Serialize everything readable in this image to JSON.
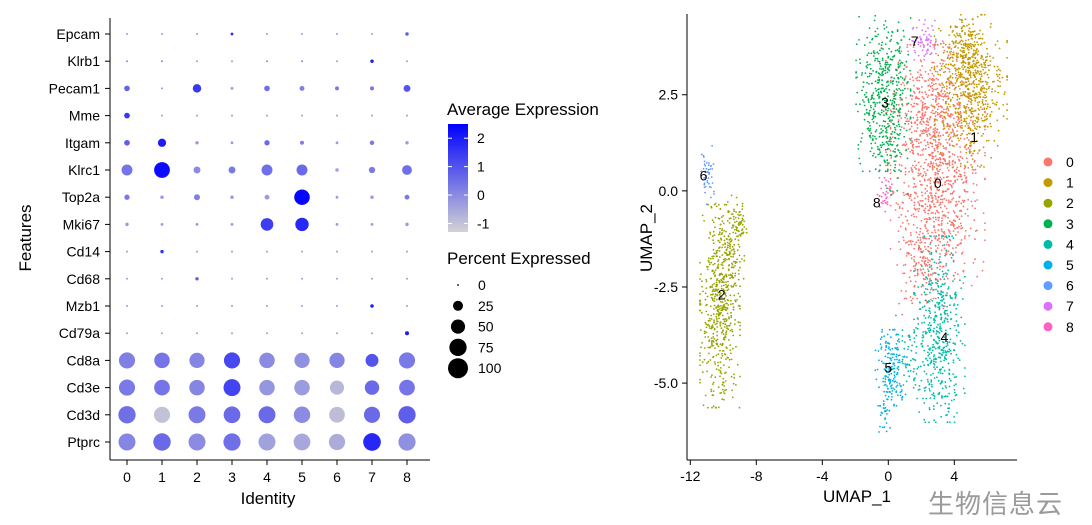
{
  "watermark": "生物信息云",
  "chart_data": [
    {
      "type": "dotplot",
      "xlabel": "Identity",
      "ylabel": "Features",
      "identities": [
        "0",
        "1",
        "2",
        "3",
        "4",
        "5",
        "6",
        "7",
        "8"
      ],
      "features": [
        "Epcam",
        "Klrb1",
        "Pecam1",
        "Mme",
        "Itgam",
        "Klrc1",
        "Top2a",
        "Mki67",
        "Cd14",
        "Cd68",
        "Mzb1",
        "Cd79a",
        "Cd8a",
        "Cd3e",
        "Cd3d",
        "Ptprc"
      ],
      "avg_expression": [
        [
          -0.3,
          -0.3,
          -0.3,
          1.8,
          -0.3,
          -0.3,
          -0.3,
          -0.3,
          0.8
        ],
        [
          0,
          0,
          -0.3,
          -0.3,
          0,
          0,
          -0.3,
          2.0,
          -0.3
        ],
        [
          0.7,
          -0.3,
          1.5,
          -0.3,
          0.5,
          0.2,
          0.3,
          0.4,
          1.0
        ],
        [
          1.5,
          -0.3,
          -0.3,
          -0.3,
          -0.3,
          -0.3,
          -0.3,
          -0.3,
          -0.3
        ],
        [
          0.8,
          2.0,
          -0.3,
          -0.3,
          0.6,
          0.2,
          -0.3,
          0.3,
          -0.3
        ],
        [
          0.4,
          2.3,
          0.0,
          0.3,
          0.5,
          0.6,
          -0.4,
          0.3,
          0.5
        ],
        [
          0.3,
          -0.3,
          0.2,
          -0.3,
          -0.3,
          2.4,
          -0.3,
          -0.3,
          0.3
        ],
        [
          -0.3,
          -0.3,
          -0.3,
          -0.3,
          1.4,
          1.8,
          -0.3,
          -0.3,
          -0.3
        ],
        [
          -0.3,
          1.5,
          -0.3,
          -0.3,
          -0.3,
          -0.3,
          -0.3,
          -0.3,
          -0.3
        ],
        [
          -0.3,
          -0.3,
          0.8,
          -0.3,
          -0.3,
          -0.3,
          -0.3,
          -0.3,
          -0.3
        ],
        [
          -0.3,
          -0.3,
          -0.3,
          -0.3,
          -0.3,
          -0.3,
          -0.3,
          2.0,
          -0.3
        ],
        [
          -0.3,
          -0.3,
          -0.3,
          -0.3,
          -0.3,
          -0.3,
          -0.3,
          -0.3,
          2.0
        ],
        [
          0.2,
          0.4,
          0.1,
          1.2,
          0.0,
          -0.1,
          0.1,
          1.0,
          0.3
        ],
        [
          0.3,
          0.4,
          0.1,
          1.3,
          -0.2,
          -0.3,
          -0.8,
          0.6,
          0.4
        ],
        [
          0.5,
          -1.0,
          0.3,
          0.6,
          0.6,
          0.0,
          -0.9,
          0.6,
          0.8
        ],
        [
          0.1,
          0.6,
          0.0,
          0.5,
          -0.4,
          -0.5,
          -0.6,
          1.8,
          -0.1
        ]
      ],
      "pct_expressed": [
        [
          1,
          1,
          1,
          2,
          1,
          1,
          1,
          1,
          3
        ],
        [
          1,
          1,
          1,
          1,
          1,
          1,
          1,
          3,
          1
        ],
        [
          8,
          1,
          18,
          2,
          8,
          6,
          4,
          4,
          12
        ],
        [
          8,
          1,
          1,
          1,
          1,
          1,
          1,
          1,
          1
        ],
        [
          8,
          17,
          3,
          2,
          7,
          4,
          2,
          5,
          3
        ],
        [
          30,
          62,
          12,
          12,
          30,
          30,
          3,
          10,
          24
        ],
        [
          7,
          3,
          9,
          3,
          6,
          60,
          2,
          3,
          6
        ],
        [
          3,
          2,
          2,
          2,
          40,
          45,
          2,
          2,
          3
        ],
        [
          1,
          3,
          1,
          1,
          1,
          1,
          1,
          1,
          1
        ],
        [
          1,
          1,
          3,
          1,
          1,
          1,
          1,
          1,
          1
        ],
        [
          1,
          1,
          1,
          1,
          1,
          1,
          1,
          3,
          1
        ],
        [
          1,
          1,
          1,
          1,
          1,
          1,
          1,
          1,
          4
        ],
        [
          65,
          60,
          58,
          65,
          60,
          58,
          58,
          42,
          65
        ],
        [
          65,
          62,
          60,
          72,
          60,
          60,
          50,
          52,
          62
        ],
        [
          75,
          65,
          72,
          70,
          72,
          68,
          62,
          65,
          75
        ],
        [
          72,
          76,
          72,
          74,
          72,
          70,
          66,
          78,
          74
        ]
      ],
      "color_legend": {
        "title": "Average Expression",
        "breaks": [
          "2",
          "1",
          "0",
          "-1"
        ],
        "range": [
          -1.3,
          2.5
        ],
        "low_color": "#d3d3d3",
        "high_color": "#0000ff"
      },
      "size_legend": {
        "title": "Percent Expressed",
        "breaks": [
          "0",
          "25",
          "50",
          "75",
          "100"
        ],
        "values": [
          0,
          25,
          50,
          75,
          100
        ]
      }
    },
    {
      "type": "scatter",
      "xlabel": "UMAP_1",
      "ylabel": "UMAP_2",
      "xlim": [
        -12.2,
        7.8
      ],
      "ylim": [
        -7.0,
        4.6
      ],
      "xticks": [
        "-12",
        "-8",
        "-4",
        "0",
        "4"
      ],
      "yticks": [
        "2.5",
        "0.0",
        "-2.5",
        "-5.0"
      ],
      "legend": "right",
      "clusters": [
        {
          "name": "0",
          "color": "#F8766D",
          "label_at": [
            3.0,
            0.2
          ],
          "blobs": [
            {
              "cx": 3.0,
              "cy": 0.5,
              "sx": 1.3,
              "sy": 1.5,
              "n": 950
            },
            {
              "cx": 2.5,
              "cy": 2.2,
              "sx": 1.2,
              "sy": 0.7,
              "n": 260
            },
            {
              "cx": 2.2,
              "cy": -1.8,
              "sx": 0.8,
              "sy": 0.7,
              "n": 140
            }
          ]
        },
        {
          "name": "1",
          "color": "#C39A00",
          "label_at": [
            5.2,
            1.4
          ],
          "blobs": [
            {
              "cx": 5.0,
              "cy": 2.6,
              "sx": 1.0,
              "sy": 0.9,
              "n": 580
            },
            {
              "cx": 4.5,
              "cy": 3.7,
              "sx": 0.6,
              "sy": 0.35,
              "n": 130
            }
          ]
        },
        {
          "name": "2",
          "color": "#98A500",
          "label_at": [
            -10.1,
            -2.7
          ],
          "blobs": [
            {
              "cx": -10.2,
              "cy": -3.0,
              "sx": 0.55,
              "sy": 1.2,
              "n": 540
            },
            {
              "cx": -9.5,
              "cy": -1.4,
              "sx": 0.35,
              "sy": 0.6,
              "n": 110
            },
            {
              "cx": -9.1,
              "cy": -0.9,
              "sx": 0.25,
              "sy": 0.3,
              "n": 40
            }
          ]
        },
        {
          "name": "3",
          "color": "#00B050",
          "label_at": [
            -0.2,
            2.3
          ],
          "blobs": [
            {
              "cx": -0.3,
              "cy": 2.6,
              "sx": 0.75,
              "sy": 0.95,
              "n": 460
            },
            {
              "cx": 0.2,
              "cy": 1.0,
              "sx": 0.45,
              "sy": 0.5,
              "n": 60
            }
          ]
        },
        {
          "name": "4",
          "color": "#00BBA8",
          "label_at": [
            3.4,
            -3.8
          ],
          "blobs": [
            {
              "cx": 3.1,
              "cy": -3.6,
              "sx": 0.7,
              "sy": 1.1,
              "n": 460
            },
            {
              "cx": 1.6,
              "cy": -4.3,
              "sx": 0.7,
              "sy": 0.5,
              "n": 70
            }
          ]
        },
        {
          "name": "5",
          "color": "#00B0E6",
          "label_at": [
            0.0,
            -4.6
          ],
          "blobs": [
            {
              "cx": 0.2,
              "cy": -4.6,
              "sx": 0.45,
              "sy": 0.45,
              "n": 170
            },
            {
              "cx": -0.3,
              "cy": -5.8,
              "sx": 0.25,
              "sy": 0.45,
              "n": 25
            }
          ]
        },
        {
          "name": "6",
          "color": "#619CFF",
          "label_at": [
            -11.2,
            0.4
          ],
          "blobs": [
            {
              "cx": -10.9,
              "cy": 0.4,
              "sx": 0.2,
              "sy": 0.35,
              "n": 45
            }
          ]
        },
        {
          "name": "7",
          "color": "#DB72FB",
          "label_at": [
            1.6,
            3.9
          ],
          "blobs": [
            {
              "cx": 2.2,
              "cy": 3.9,
              "sx": 0.5,
              "sy": 0.25,
              "n": 65
            }
          ]
        },
        {
          "name": "8",
          "color": "#FF61C3",
          "label_at": [
            -0.7,
            -0.3
          ],
          "blobs": [
            {
              "cx": -0.2,
              "cy": -0.1,
              "sx": 0.22,
              "sy": 0.2,
              "n": 35
            }
          ]
        }
      ]
    }
  ]
}
